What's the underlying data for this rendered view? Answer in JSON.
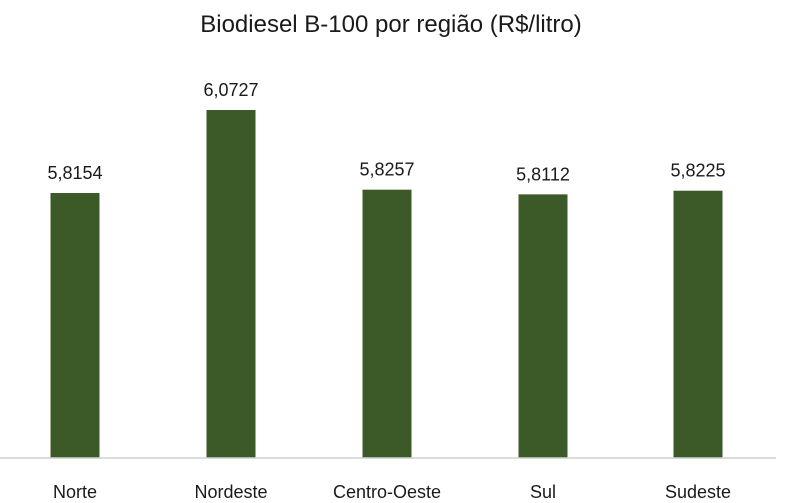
{
  "chart_data": {
    "type": "bar",
    "title": "Biodiesel B-100 por região (R$/litro)",
    "categories": [
      "Norte",
      "Nordeste",
      "Centro-Oeste",
      "Sul",
      "Sudeste"
    ],
    "values": [
      5.8154,
      6.0727,
      5.8257,
      5.8112,
      5.8225
    ],
    "data_labels": [
      "5,8154",
      "6,0727",
      "5,8257",
      "5,8112",
      "5,8225"
    ],
    "xlabel": "",
    "ylabel": "",
    "y_axis_visible": false,
    "grid": false,
    "legend": "none",
    "bar_color": "#3c5a27",
    "axis_color": "#d0d0d0"
  }
}
